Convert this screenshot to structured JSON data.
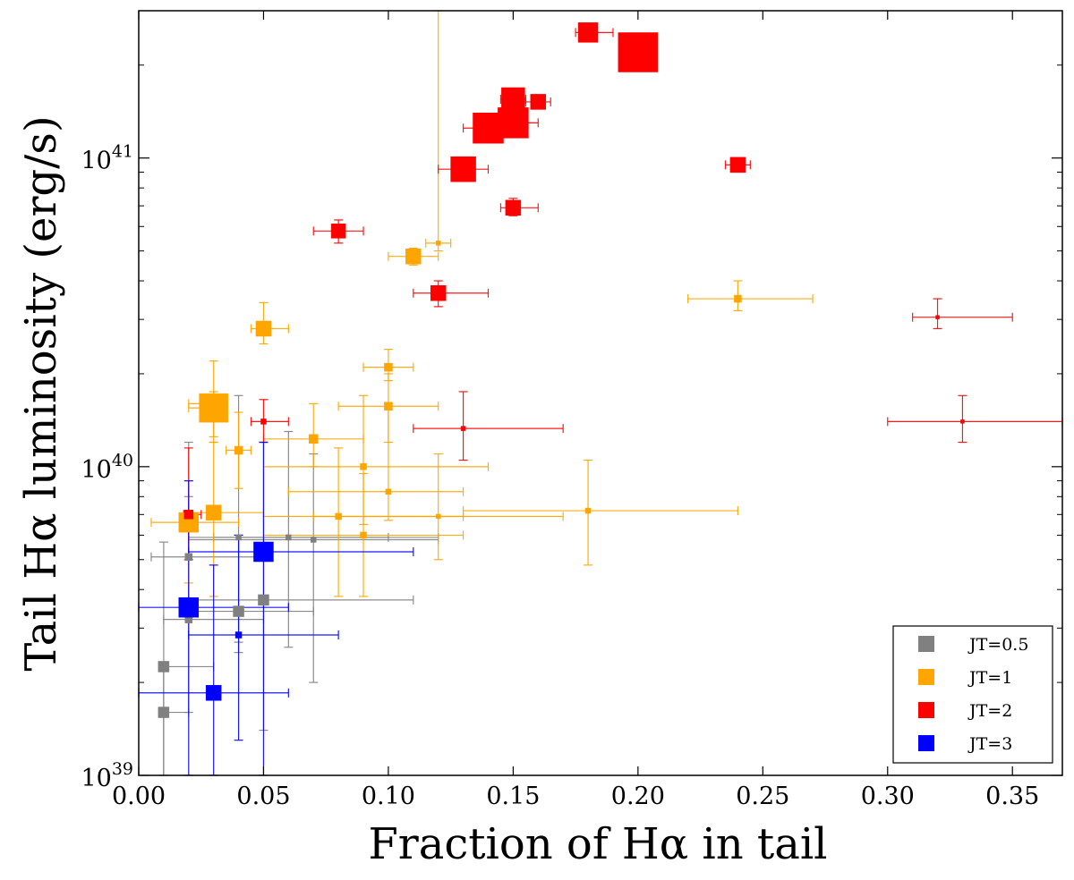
{
  "chart_data": {
    "type": "scatter",
    "title": "",
    "xlabel": "Fraction of Hα in tail",
    "ylabel": "Tail Hα luminosity (erg/s)",
    "xlim": [
      0.0,
      0.37
    ],
    "ylim": [
      1e+39,
      3e+41
    ],
    "yscale": "log",
    "x_ticks": [
      0.0,
      0.05,
      0.1,
      0.15,
      0.2,
      0.25,
      0.3,
      0.35
    ],
    "x_tick_labels": [
      "0.00",
      "0.05",
      "0.10",
      "0.15",
      "0.20",
      "0.25",
      "0.30",
      "0.35"
    ],
    "y_ticks": [
      1e+39,
      1e+40,
      1e+41
    ],
    "y_tick_labels": [
      {
        "base": "10",
        "exp": "39"
      },
      {
        "base": "10",
        "exp": "40"
      },
      {
        "base": "10",
        "exp": "41"
      }
    ],
    "grid": false,
    "legend_position": "lower-right",
    "series": [
      {
        "name": "JT=0.5",
        "color": "#808080",
        "points": [
          {
            "x": 0.01,
            "y": 1.6e+39,
            "size": 0.6,
            "xerr": [
              0.008,
              0.02
            ],
            "yerr": [
              1e+39,
              2.2e+39
            ]
          },
          {
            "x": 0.01,
            "y": 2.25e+39,
            "size": 0.6,
            "xerr": [
              0.008,
              0.03
            ],
            "yerr": [
              1e+39,
              5.7e+39
            ]
          },
          {
            "x": 0.02,
            "y": 5.1e+39,
            "size": 0.4,
            "xerr": [
              0.005,
              0.05
            ],
            "yerr": [
              3.3e+39,
              1.2e+40
            ]
          },
          {
            "x": 0.02,
            "y": 3.2e+39,
            "size": 0.4,
            "xerr": [
              0.01,
              0.05
            ],
            "yerr": [
              1.6e+39,
              8e+39
            ]
          },
          {
            "x": 0.04,
            "y": 3.4e+39,
            "size": 0.6,
            "xerr": [
              0.02,
              0.07
            ],
            "yerr": [
              2.5e+39,
              6e+39
            ]
          },
          {
            "x": 0.04,
            "y": 5.9e+39,
            "size": 0.3,
            "xerr": [
              0.03,
              0.12
            ],
            "yerr": [
              2.7e+39,
              1.7e+40
            ]
          },
          {
            "x": 0.05,
            "y": 3.7e+39,
            "size": 0.6,
            "xerr": [
              0.02,
              0.11
            ],
            "yerr": [
              1.4e+39,
              1.2e+40
            ]
          },
          {
            "x": 0.06,
            "y": 5.9e+39,
            "size": 0.3,
            "xerr": [
              0.02,
              0.1
            ],
            "yerr": [
              2.6e+39,
              1.3e+40
            ]
          },
          {
            "x": 0.07,
            "y": 5.8e+39,
            "size": 0.3,
            "xerr": [
              0.02,
              0.12
            ],
            "yerr": [
              2e+39,
              1.1e+40
            ]
          }
        ]
      },
      {
        "name": "JT=1",
        "color": "#ffa500",
        "points": [
          {
            "x": 0.02,
            "y": 6.6e+39,
            "size": 1.1,
            "xerr": [
              0.005,
              0.04
            ],
            "yerr": [
              4.2e+39,
              9e+39
            ]
          },
          {
            "x": 0.03,
            "y": 7.1e+39,
            "size": 0.85,
            "xerr": [
              0.02,
              0.05
            ],
            "yerr": [
              3.8e+39,
              1.2e+40
            ]
          },
          {
            "x": 0.03,
            "y": 1.55e+40,
            "size": 1.6,
            "xerr": [
              0.02,
              0.035
            ],
            "yerr": [
              1.25e+40,
              1.75e+40
            ]
          },
          {
            "x": 0.03,
            "y": 1.6e+40,
            "size": 0.8,
            "xerr": [
              0.02,
              0.035
            ],
            "yerr": [
              1.2e+40,
              2.2e+40
            ]
          },
          {
            "x": 0.04,
            "y": 1.13e+40,
            "size": 0.45,
            "xerr": [
              0.035,
              0.045
            ],
            "yerr": [
              8.5e+39,
              1.5e+40
            ]
          },
          {
            "x": 0.05,
            "y": 2.8e+40,
            "size": 0.85,
            "xerr": [
              0.045,
              0.06
            ],
            "yerr": [
              2.5e+40,
              3.4e+40
            ]
          },
          {
            "x": 0.07,
            "y": 1.23e+40,
            "size": 0.5,
            "xerr": [
              0.05,
              0.09
            ],
            "yerr": [
              1e+40,
              1.6e+40
            ]
          },
          {
            "x": 0.08,
            "y": 6.9e+39,
            "size": 0.35,
            "xerr": [
              0.05,
              0.17
            ],
            "yerr": [
              3.8e+39,
              1.15e+40
            ]
          },
          {
            "x": 0.09,
            "y": 1e+40,
            "size": 0.35,
            "xerr": [
              0.05,
              0.14
            ],
            "yerr": [
              6.5e+39,
              1.7e+40
            ]
          },
          {
            "x": 0.09,
            "y": 6e+39,
            "size": 0.35,
            "xerr": [
              0.05,
              0.13
            ],
            "yerr": [
              3.8e+39,
              9.5e+39
            ]
          },
          {
            "x": 0.1,
            "y": 2.1e+40,
            "size": 0.45,
            "xerr": [
              0.09,
              0.11
            ],
            "yerr": [
              1.9e+40,
              2.4e+40
            ]
          },
          {
            "x": 0.1,
            "y": 1.57e+40,
            "size": 0.45,
            "xerr": [
              0.08,
              0.12
            ],
            "yerr": [
              1.2e+40,
              2e+40
            ]
          },
          {
            "x": 0.1,
            "y": 8.3e+39,
            "size": 0.3,
            "xerr": [
              0.06,
              0.13
            ],
            "yerr": [
              6.7e+39,
              1.6e+40
            ]
          },
          {
            "x": 0.11,
            "y": 4.8e+40,
            "size": 0.85,
            "xerr": [
              0.1,
              0.12
            ],
            "yerr": [
              4.5e+40,
              5.1e+40
            ]
          },
          {
            "x": 0.12,
            "y": 5.3e+40,
            "size": 0.25,
            "xerr": [
              0.115,
              0.125
            ],
            "yerr": [
              5e+40,
              3e+41
            ]
          },
          {
            "x": 0.12,
            "y": 6.9e+39,
            "size": 0.25,
            "xerr": [
              0.07,
              0.13
            ],
            "yerr": [
              5e+39,
              1.1e+40
            ]
          },
          {
            "x": 0.18,
            "y": 7.2e+39,
            "size": 0.3,
            "xerr": [
              0.13,
              0.24
            ],
            "yerr": [
              4.8e+39,
              1.05e+40
            ]
          },
          {
            "x": 0.24,
            "y": 3.5e+40,
            "size": 0.4,
            "xerr": [
              0.22,
              0.27
            ],
            "yerr": [
              3.2e+40,
              4e+40
            ]
          }
        ]
      },
      {
        "name": "JT=2",
        "color": "#ff0000",
        "points": [
          {
            "x": 0.02,
            "y": 7e+39,
            "size": 0.5,
            "xerr": [
              0.018,
              0.025
            ],
            "yerr": [
              5e+39,
              1.15e+40
            ]
          },
          {
            "x": 0.05,
            "y": 1.4e+40,
            "size": 0.3,
            "xerr": [
              0.045,
              0.06
            ],
            "yerr": [
              1.2e+40,
              1.65e+40
            ]
          },
          {
            "x": 0.08,
            "y": 5.8e+40,
            "size": 0.8,
            "xerr": [
              0.07,
              0.09
            ],
            "yerr": [
              5.3e+40,
              6.3e+40
            ]
          },
          {
            "x": 0.12,
            "y": 3.65e+40,
            "size": 0.85,
            "xerr": [
              0.11,
              0.14
            ],
            "yerr": [
              3.3e+40,
              4e+40
            ]
          },
          {
            "x": 0.13,
            "y": 1.33e+40,
            "size": 0.25,
            "xerr": [
              0.11,
              0.17
            ],
            "yerr": [
              1.05e+40,
              1.75e+40
            ]
          },
          {
            "x": 0.13,
            "y": 9.2e+40,
            "size": 1.4,
            "xerr": [
              0.12,
              0.14
            ],
            "yerr": [
              8.7e+40,
              9.7e+40
            ]
          },
          {
            "x": 0.14,
            "y": 1.25e+41,
            "size": 1.7,
            "xerr": [
              0.13,
              0.15
            ],
            "yerr": [
              1.2e+41,
              1.3e+41
            ]
          },
          {
            "x": 0.15,
            "y": 1.3e+41,
            "size": 1.7,
            "xerr": [
              0.14,
              0.16
            ],
            "yerr": [
              1.25e+41,
              1.35e+41
            ]
          },
          {
            "x": 0.15,
            "y": 1.55e+41,
            "size": 1.3,
            "xerr": [
              0.145,
              0.155
            ],
            "yerr": [
              1.5e+41,
              1.6e+41
            ]
          },
          {
            "x": 0.15,
            "y": 6.9e+40,
            "size": 0.85,
            "xerr": [
              0.145,
              0.16
            ],
            "yerr": [
              6.5e+40,
              7.4e+40
            ]
          },
          {
            "x": 0.16,
            "y": 1.52e+41,
            "size": 0.85,
            "xerr": [
              0.155,
              0.165
            ],
            "yerr": [
              1.47e+41,
              1.57e+41
            ]
          },
          {
            "x": 0.18,
            "y": 2.55e+41,
            "size": 1.1,
            "xerr": [
              0.175,
              0.19
            ],
            "yerr": [
              2.5e+41,
              2.6e+41
            ]
          },
          {
            "x": 0.2,
            "y": 2.2e+41,
            "size": 2.2,
            "xerr": [
              0.195,
              0.205
            ],
            "yerr": [
              2.15e+41,
              2.25e+41
            ]
          },
          {
            "x": 0.24,
            "y": 9.5e+40,
            "size": 0.85,
            "xerr": [
              0.235,
              0.245
            ],
            "yerr": [
              9.2e+40,
              9.8e+40
            ]
          },
          {
            "x": 0.32,
            "y": 3.05e+40,
            "size": 0.2,
            "xerr": [
              0.31,
              0.35
            ],
            "yerr": [
              2.8e+40,
              3.5e+40
            ]
          },
          {
            "x": 0.33,
            "y": 1.4e+40,
            "size": 0.2,
            "xerr": [
              0.3,
              0.37
            ],
            "yerr": [
              1.2e+40,
              1.7e+40
            ]
          }
        ]
      },
      {
        "name": "JT=3",
        "color": "#0000ff",
        "points": [
          {
            "x": 0.02,
            "y": 3.5e+39,
            "size": 1.1,
            "xerr": [
              0.0,
              0.06
            ],
            "yerr": [
              1e+39,
              9e+39
            ]
          },
          {
            "x": 0.03,
            "y": 1.85e+39,
            "size": 0.85,
            "xerr": [
              0.0,
              0.06
            ],
            "yerr": [
              1e+39,
              4.8e+39
            ]
          },
          {
            "x": 0.04,
            "y": 2.85e+39,
            "size": 0.35,
            "xerr": [
              0.02,
              0.08
            ],
            "yerr": [
              1.3e+39,
              6e+39
            ]
          },
          {
            "x": 0.05,
            "y": 5.3e+39,
            "size": 1.1,
            "xerr": [
              0.02,
              0.11
            ],
            "yerr": [
              1e+39,
              1.2e+40
            ]
          }
        ]
      }
    ]
  }
}
